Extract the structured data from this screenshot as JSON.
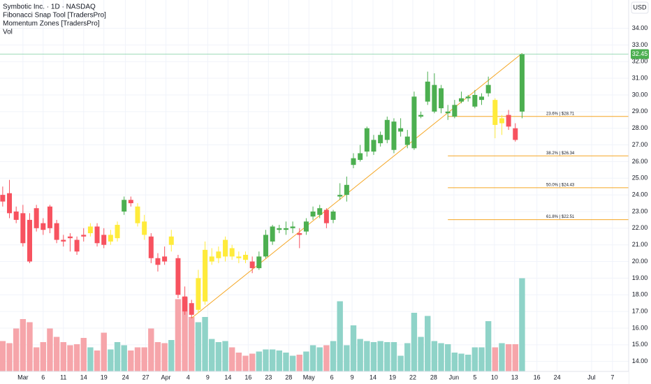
{
  "chart_data": {
    "type": "candlestick",
    "title": "Symbotic Inc. · 1D · NASDAQ",
    "indicators": [
      "Fibonacci Snap Tool [TradersPro]",
      "Momentum Zones [TradersPro]",
      "Vol"
    ],
    "currency": "USD",
    "candles": {
      "open": [
        24.0,
        24.1,
        23.0,
        22.9,
        22.5,
        23.2,
        22.3,
        23.3,
        22.3,
        21.3,
        21.5,
        21.3,
        21.6,
        21.7,
        22.1,
        21.6,
        21.2,
        21.4,
        23.0,
        23.7,
        23.3,
        22.4,
        21.5,
        20.2,
        20.3,
        21.0,
        20.2,
        17.9,
        17.5,
        17.1,
        17.6,
        20.0,
        20.2,
        20.3,
        20.8,
        20.3,
        20.4,
        20.0,
        19.6,
        20.3,
        21.2,
        21.9,
        21.9,
        22.0,
        21.7,
        21.8,
        22.7,
        22.8,
        23.1,
        22.5,
        23.9,
        24.0,
        25.8,
        26.1,
        26.6,
        26.6,
        27.1,
        27.3,
        26.7,
        27.8,
        27.0,
        26.8,
        28.7,
        29.6,
        29.0,
        29.2,
        28.9,
        28.7,
        29.6,
        29.8,
        29.3,
        29.7,
        30.1,
        29.7,
        28.3,
        28.8,
        28.0,
        29.0
      ],
      "high": [
        24.5,
        24.9,
        23.3,
        23.4,
        22.9,
        23.4,
        22.6,
        23.4,
        22.5,
        21.6,
        21.7,
        21.5,
        22.0,
        22.3,
        22.3,
        22.0,
        21.9,
        22.4,
        23.9,
        23.9,
        23.5,
        22.8,
        21.7,
        20.5,
        20.9,
        21.9,
        20.4,
        18.5,
        17.7,
        19.5,
        21.2,
        20.8,
        20.9,
        21.5,
        21.0,
        20.6,
        20.6,
        20.3,
        20.6,
        21.9,
        22.2,
        22.2,
        22.4,
        22.4,
        22.0,
        22.6,
        23.3,
        23.4,
        23.2,
        23.1,
        24.7,
        25.1,
        26.5,
        27.0,
        28.1,
        27.6,
        27.8,
        28.7,
        28.6,
        28.6,
        27.9,
        30.2,
        29.0,
        31.4,
        31.3,
        30.6,
        29.4,
        29.7,
        30.2,
        30.0,
        30.3,
        30.1,
        31.1,
        29.8,
        28.8,
        29.1,
        28.3,
        32.5
      ],
      "low": [
        23.3,
        22.6,
        22.3,
        20.9,
        19.9,
        21.8,
        21.6,
        21.7,
        21.1,
        20.9,
        20.6,
        20.4,
        21.2,
        21.5,
        20.9,
        20.8,
        21.0,
        21.2,
        22.8,
        23.3,
        22.1,
        21.3,
        19.9,
        19.4,
        19.8,
        20.6,
        17.8,
        16.8,
        16.6,
        16.9,
        17.4,
        19.8,
        19.9,
        20.0,
        20.1,
        19.9,
        19.9,
        19.3,
        19.5,
        20.2,
        21.0,
        21.7,
        21.6,
        21.7,
        20.8,
        21.6,
        22.5,
        22.6,
        22.0,
        22.3,
        23.7,
        23.6,
        25.6,
        26.0,
        26.3,
        26.4,
        26.9,
        27.1,
        26.5,
        27.5,
        26.8,
        26.7,
        28.6,
        29.4,
        28.9,
        28.9,
        28.5,
        28.6,
        29.5,
        29.6,
        29.2,
        29.4,
        29.9,
        27.4,
        27.6,
        27.9,
        27.2,
        28.6
      ],
      "close": [
        23.6,
        22.9,
        22.5,
        21.1,
        20.0,
        22.0,
        21.9,
        22.0,
        21.3,
        21.2,
        21.4,
        20.6,
        21.5,
        22.1,
        21.1,
        21.0,
        21.6,
        22.2,
        23.7,
        23.5,
        22.3,
        21.6,
        20.2,
        19.8,
        20.0,
        21.5,
        18.0,
        17.0,
        16.8,
        19.0,
        20.7,
        20.3,
        20.6,
        21.3,
        20.3,
        20.2,
        20.1,
        19.6,
        20.3,
        21.6,
        22.1,
        22.0,
        22.0,
        22.1,
        21.6,
        22.4,
        23.0,
        23.2,
        22.3,
        23.0,
        24.0,
        24.6,
        26.2,
        26.5,
        28.0,
        27.3,
        27.6,
        28.5,
        28.4,
        28.0,
        27.5,
        29.9,
        28.8,
        30.8,
        30.6,
        30.4,
        29.0,
        29.4,
        29.8,
        29.9,
        30.0,
        29.9,
        30.6,
        28.2,
        28.6,
        28.1,
        27.3,
        32.45
      ],
      "volume": [
        2.9,
        2.7,
        4.1,
        5.0,
        4.7,
        2.3,
        2.8,
        4.1,
        3.3,
        2.8,
        2.5,
        2.6,
        3.2,
        2.3,
        2.0,
        3.7,
        2.1,
        2.8,
        2.5,
        2.0,
        2.3,
        2.3,
        4.1,
        2.8,
        2.7,
        3.0,
        6.9,
        7.1,
        5.2,
        4.7,
        5.2,
        3.1,
        2.8,
        2.9,
        2.3,
        1.8,
        1.5,
        1.7,
        1.9,
        2.1,
        2.1,
        2.0,
        1.8,
        1.5,
        1.6,
        1.9,
        2.5,
        2.3,
        2.5,
        2.9,
        6.7,
        2.5,
        4.4,
        3.1,
        2.9,
        2.8,
        2.9,
        2.8,
        2.8,
        1.5,
        2.7,
        5.6,
        3.3,
        5.3,
        2.9,
        2.7,
        2.6,
        1.8,
        1.7,
        1.6,
        2.3,
        2.3,
        4.8,
        2.3,
        2.7,
        2.6,
        2.6,
        8.9
      ]
    },
    "zone_candles": [
      13,
      16,
      17,
      20,
      21,
      25,
      29,
      30,
      31,
      32,
      33,
      34,
      35,
      36,
      73,
      74
    ],
    "colors": {
      "up": "#4caf50",
      "down": "#f7525f",
      "zone": "#ffeb3b",
      "vol_up": "#8fd3c8",
      "vol_down": "#f6a5aa",
      "fib": "#f5a623",
      "price_line": "#7fcfa0"
    },
    "fib_levels": [
      {
        "value": 28.71,
        "label": "23.6% | $28.71"
      },
      {
        "value": 26.34,
        "label": "38.2% | $26.34"
      },
      {
        "value": 24.43,
        "label": "50.0% | $24.43"
      },
      {
        "value": 22.51,
        "label": "61.8% | $22.51"
      }
    ],
    "xlim": [
      -0.4,
      92.8
    ],
    "xticks": [
      {
        "value": 3.0,
        "label": "Mar"
      },
      {
        "value": 6.0,
        "label": "6"
      },
      {
        "value": 9.0,
        "label": "11"
      },
      {
        "value": 12.0,
        "label": "14"
      },
      {
        "value": 15.0,
        "label": "19"
      },
      {
        "value": 18.2,
        "label": "24"
      },
      {
        "value": 21.2,
        "label": "27"
      },
      {
        "value": 24.2,
        "label": "Apr"
      },
      {
        "value": 27.5,
        "label": "4"
      },
      {
        "value": 30.4,
        "label": "9"
      },
      {
        "value": 33.4,
        "label": "14"
      },
      {
        "value": 36.4,
        "label": "16"
      },
      {
        "value": 39.4,
        "label": "23"
      },
      {
        "value": 42.4,
        "label": "28"
      },
      {
        "value": 45.4,
        "label": "May"
      },
      {
        "value": 48.8,
        "label": "6"
      },
      {
        "value": 51.8,
        "label": "9"
      },
      {
        "value": 54.9,
        "label": "14"
      },
      {
        "value": 57.8,
        "label": "19"
      },
      {
        "value": 60.8,
        "label": "22"
      },
      {
        "value": 63.9,
        "label": "28"
      },
      {
        "value": 66.9,
        "label": "Jun"
      },
      {
        "value": 70.0,
        "label": "5"
      },
      {
        "value": 72.9,
        "label": "10"
      },
      {
        "value": 75.9,
        "label": "13"
      },
      {
        "value": 79.2,
        "label": "16"
      },
      {
        "value": 82.2,
        "label": "24"
      },
      {
        "value": 87.3,
        "label": "Jul"
      },
      {
        "value": 90.4,
        "label": "7"
      }
    ],
    "ylim": [
      13.4,
      35.7
    ],
    "yticks": [
      {
        "value": 14,
        "label": "14.00"
      },
      {
        "value": 15,
        "label": "15.00"
      },
      {
        "value": 16,
        "label": "16.00"
      },
      {
        "value": 17,
        "label": "17.00"
      },
      {
        "value": 18,
        "label": "18.00"
      },
      {
        "value": 19,
        "label": "19.00"
      },
      {
        "value": 20,
        "label": "20.00"
      },
      {
        "value": 21,
        "label": "21.00"
      },
      {
        "value": 22,
        "label": "22.00"
      },
      {
        "value": 23,
        "label": "23.00"
      },
      {
        "value": 24,
        "label": "24.00"
      },
      {
        "value": 25,
        "label": "25.00"
      },
      {
        "value": 26,
        "label": "26.00"
      },
      {
        "value": 27,
        "label": "27.00"
      },
      {
        "value": 28,
        "label": "28.00"
      },
      {
        "value": 29,
        "label": "29.00"
      },
      {
        "value": 30,
        "label": "30.00"
      },
      {
        "value": 31,
        "label": "31.00"
      },
      {
        "value": 32,
        "label": "32.00"
      },
      {
        "value": 33,
        "label": "33.00"
      },
      {
        "value": 34,
        "label": "34.00"
      }
    ],
    "vol_ylim": [
      0,
      10
    ],
    "grid": true
  }
}
